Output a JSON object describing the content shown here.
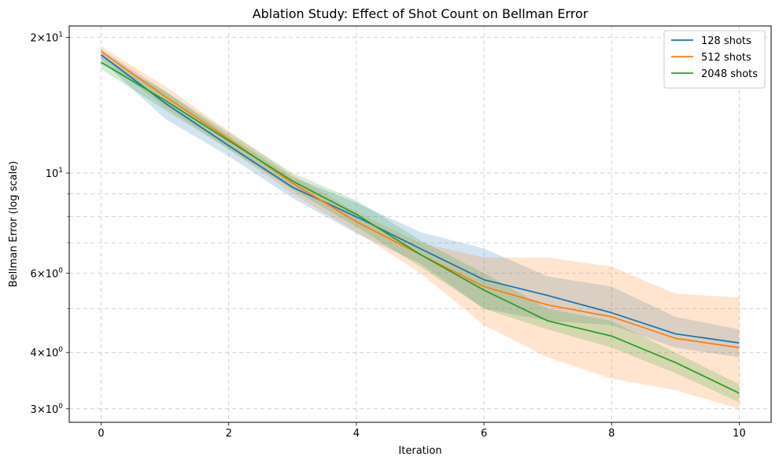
{
  "chart_data": {
    "type": "line",
    "title": "Ablation Study: Effect of Shot Count on Bellman Error",
    "xlabel": "Iteration",
    "ylabel": "Bellman Error (log scale)",
    "yscale": "log",
    "xlim": [
      -0.5,
      10.5
    ],
    "ylim": [
      2.8,
      21.2
    ],
    "x": [
      0,
      1,
      2,
      3,
      4,
      5,
      6,
      7,
      8,
      9,
      10
    ],
    "x_ticks": [
      0,
      2,
      4,
      6,
      8,
      10
    ],
    "y_ticks": [
      {
        "base": "3",
        "times": "×",
        "ten": "10",
        "exp": "0",
        "value": 3
      },
      {
        "base": "4",
        "times": "×",
        "ten": "10",
        "exp": "0",
        "value": 4
      },
      {
        "base": "6",
        "times": "×",
        "ten": "10",
        "exp": "0",
        "value": 6
      },
      {
        "base": "",
        "times": "",
        "ten": "10",
        "exp": "1",
        "value": 10
      },
      {
        "base": "2",
        "times": "×",
        "ten": "10",
        "exp": "1",
        "value": 20
      }
    ],
    "y_minor_ticks": [
      5,
      7,
      8,
      9
    ],
    "grid": true,
    "legend_position": "top-right",
    "series": [
      {
        "name": "128 shots",
        "color": "#1f77b4",
        "values": [
          18.3,
          14.3,
          11.5,
          9.3,
          8.0,
          6.8,
          5.8,
          5.35,
          4.9,
          4.4,
          4.2
        ],
        "lower": [
          17.8,
          13.2,
          10.9,
          8.8,
          7.35,
          6.3,
          5.0,
          4.7,
          4.6,
          4.1,
          3.9
        ],
        "upper": [
          18.8,
          15.2,
          12.1,
          9.8,
          8.6,
          7.4,
          6.8,
          5.9,
          5.6,
          4.8,
          4.5
        ]
      },
      {
        "name": "512 shots",
        "color": "#ff7f0e",
        "values": [
          18.6,
          14.8,
          11.9,
          9.5,
          7.8,
          6.6,
          5.6,
          5.1,
          4.8,
          4.3,
          4.1
        ],
        "lower": [
          18.0,
          14.0,
          11.3,
          9.0,
          7.4,
          6.0,
          4.6,
          3.9,
          3.5,
          3.3,
          3.0
        ],
        "upper": [
          19.1,
          15.6,
          12.4,
          9.9,
          8.2,
          7.0,
          6.5,
          6.5,
          6.2,
          5.4,
          5.3
        ]
      },
      {
        "name": "2048 shots",
        "color": "#2ca02c",
        "values": [
          17.6,
          14.5,
          11.8,
          9.6,
          8.1,
          6.6,
          5.5,
          4.7,
          4.35,
          3.8,
          3.25
        ],
        "lower": [
          17.0,
          13.8,
          11.3,
          9.2,
          7.6,
          6.2,
          5.0,
          4.5,
          4.1,
          3.6,
          3.1
        ],
        "upper": [
          18.2,
          15.2,
          12.3,
          10.0,
          8.7,
          7.1,
          6.0,
          5.0,
          4.7,
          4.0,
          3.4
        ]
      }
    ]
  }
}
